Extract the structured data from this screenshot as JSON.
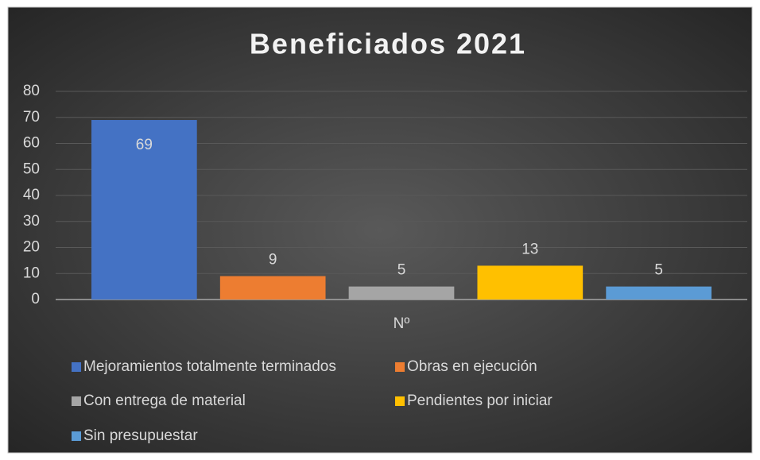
{
  "chart_data": {
    "type": "bar",
    "title": "Beneficiados 2021",
    "categories": [
      "Nº"
    ],
    "series": [
      {
        "name": "Mejoramientos totalmente terminados",
        "color": "#4472c4",
        "values": [
          69
        ]
      },
      {
        "name": "Obras en ejecución",
        "color": "#ed7d31",
        "values": [
          9
        ]
      },
      {
        "name": "Con entrega de material",
        "color": "#a5a5a5",
        "values": [
          5
        ]
      },
      {
        "name": "Pendientes por iniciar",
        "color": "#ffc000",
        "values": [
          13
        ]
      },
      {
        "name": "Sin presupuestar",
        "color": "#5b9bd5",
        "values": [
          5
        ]
      }
    ],
    "ylim": [
      0,
      80
    ],
    "yticks": [
      0,
      10,
      20,
      30,
      40,
      50,
      60,
      70,
      80
    ],
    "grid": true,
    "legend": "bottom"
  }
}
